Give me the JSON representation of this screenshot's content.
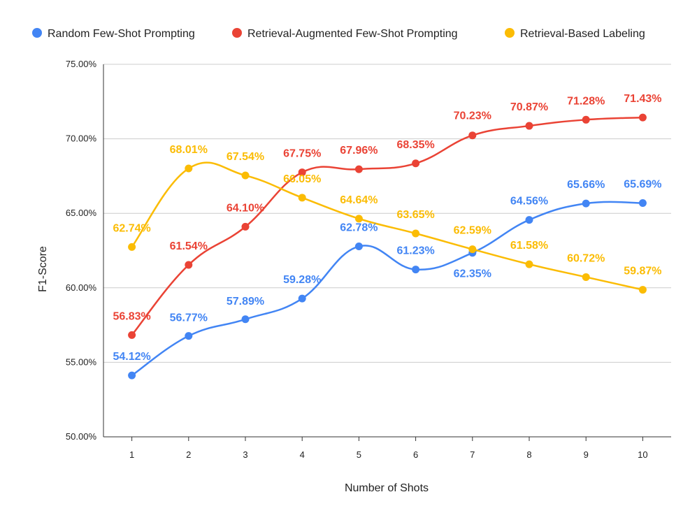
{
  "chart_data": {
    "type": "line",
    "title": "",
    "xlabel": "Number of Shots",
    "ylabel": "F1-Score",
    "categories": [
      "1",
      "2",
      "3",
      "4",
      "5",
      "6",
      "7",
      "8",
      "9",
      "10"
    ],
    "ylim": [
      50,
      75
    ],
    "yticks": [
      "50.00%",
      "55.00%",
      "60.00%",
      "65.00%",
      "70.00%",
      "75.00%"
    ],
    "grid": true,
    "legend_position": "top",
    "series": [
      {
        "name": "Random Few-Shot Prompting",
        "color": "#4285F4",
        "values": [
          54.12,
          56.77,
          57.89,
          59.28,
          62.78,
          61.23,
          62.35,
          64.56,
          65.66,
          65.69
        ],
        "labels": [
          "54.12%",
          "56.77%",
          "57.89%",
          "59.28%",
          "62.78%",
          "61.23%",
          "62.35%",
          "64.56%",
          "65.66%",
          "65.69%"
        ]
      },
      {
        "name": "Retrieval-Augmented Few-Shot Prompting",
        "color": "#EA4335",
        "values": [
          56.83,
          61.54,
          64.1,
          67.75,
          67.96,
          68.35,
          70.23,
          70.87,
          71.28,
          71.43
        ],
        "labels": [
          "56.83%",
          "61.54%",
          "64.10%",
          "67.75%",
          "67.96%",
          "68.35%",
          "70.23%",
          "70.87%",
          "71.28%",
          "71.43%"
        ]
      },
      {
        "name": "Retrieval-Based Labeling",
        "color": "#FBBC04",
        "values": [
          62.74,
          68.01,
          67.54,
          66.05,
          64.64,
          63.65,
          62.59,
          61.58,
          60.72,
          59.87
        ],
        "labels": [
          "62.74%",
          "68.01%",
          "67.54%",
          "66.05%",
          "64.64%",
          "63.65%",
          "62.59%",
          "61.58%",
          "60.72%",
          "59.87%"
        ]
      }
    ]
  }
}
